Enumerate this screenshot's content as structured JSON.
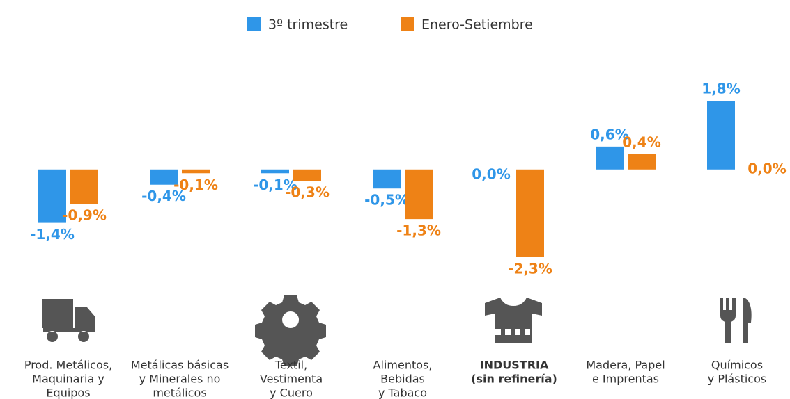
{
  "chart_data": {
    "type": "bar",
    "categories": [
      [
        "Prod. Metálicos,",
        "Maquinaria y",
        "Equipos"
      ],
      [
        "Metálicas básicas",
        "y Minerales no",
        "metálicos"
      ],
      [
        "Textil,",
        "Vestimenta",
        "y Cuero"
      ],
      [
        "Alimentos,",
        "Bebidas",
        "y Tabaco"
      ],
      [
        "INDUSTRIA",
        "(sin refinería)"
      ],
      [
        "Madera, Papel",
        "e Imprentas"
      ],
      [
        "Químicos",
        "y Plásticos"
      ]
    ],
    "highlight_index": 4,
    "series": [
      {
        "name": "3º trimestre",
        "color": "#2f96e8",
        "values": [
          -1.4,
          -0.4,
          -0.1,
          -0.5,
          0.0,
          0.6,
          1.8
        ],
        "value_labels": [
          "-1,4%",
          "-0,4%",
          "-0,1%",
          "-0,5%",
          "0,0%",
          "0,6%",
          "1,8%"
        ]
      },
      {
        "name": "Enero-Setiembre",
        "color": "#ee8216",
        "values": [
          -0.9,
          -0.1,
          -0.3,
          -1.3,
          -2.3,
          0.4,
          0.0
        ],
        "value_labels": [
          "-0,9%",
          "-0,1%",
          "-0,3%",
          "-1,3%",
          "-2,3%",
          "0,4%",
          "0,0%"
        ]
      }
    ],
    "legend": "top"
  }
}
